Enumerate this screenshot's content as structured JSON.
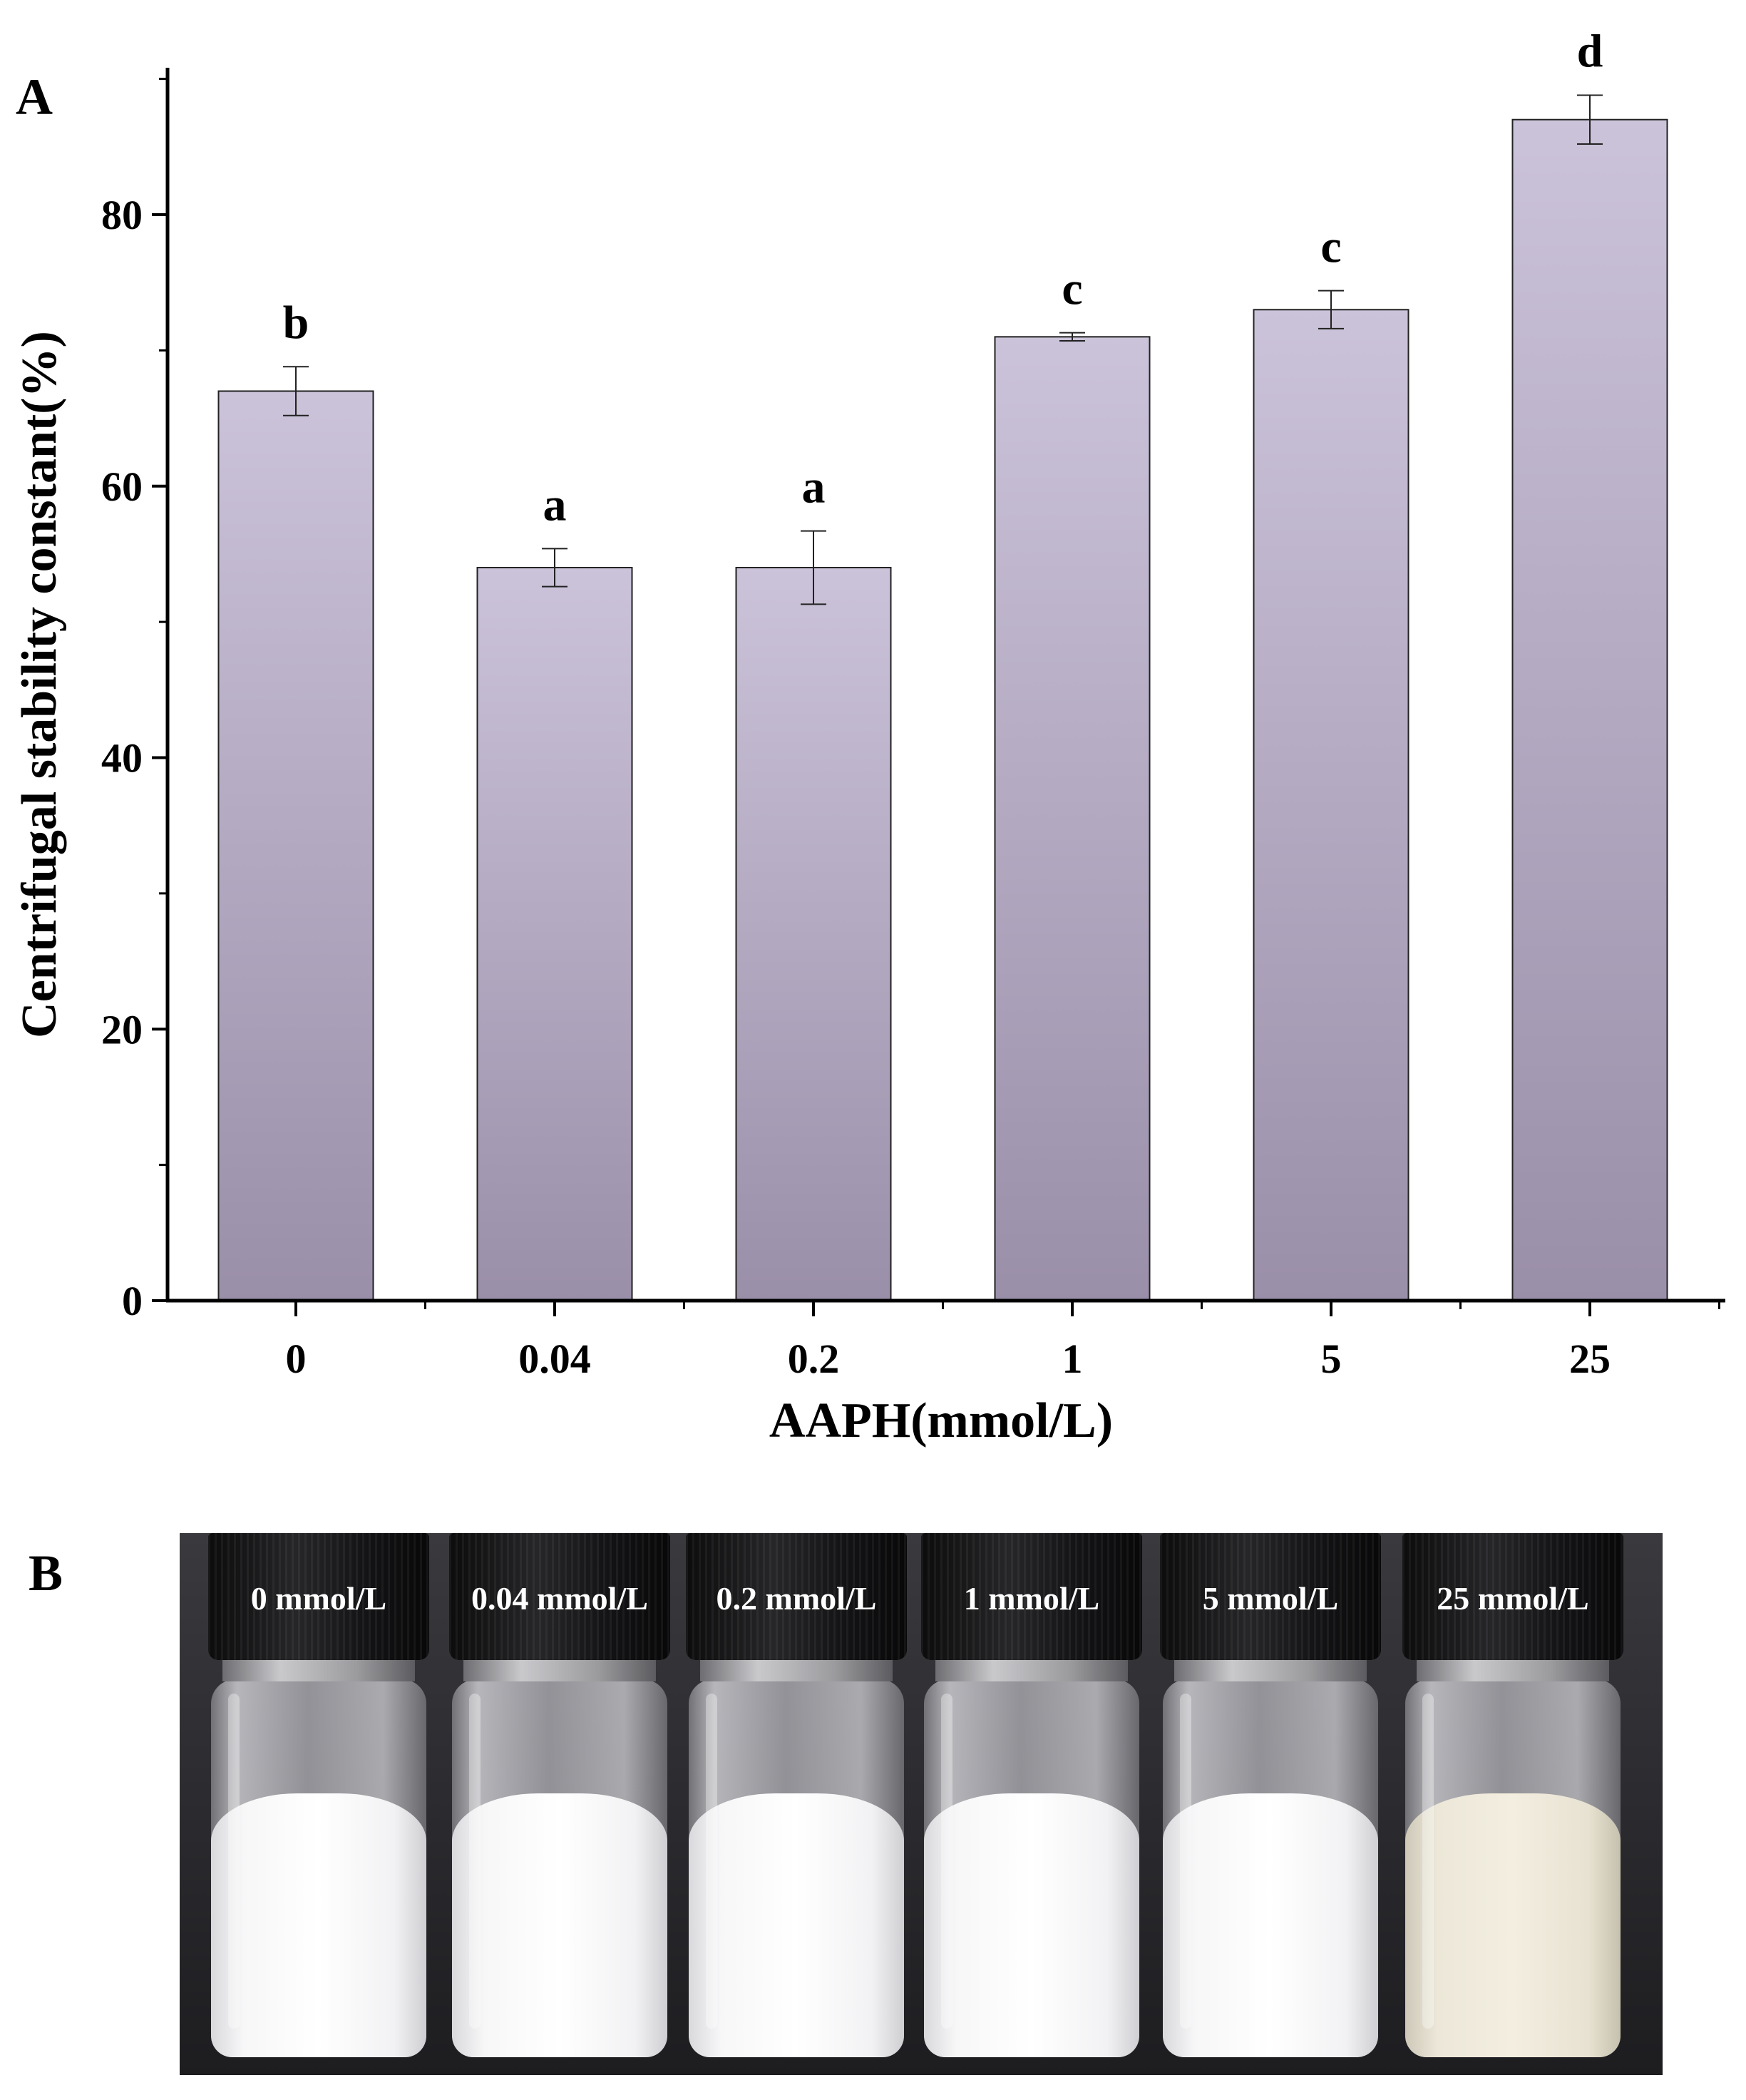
{
  "panels": {
    "a_label": "A",
    "b_label": "B"
  },
  "chart_data": {
    "type": "bar",
    "title": "",
    "xlabel": "AAPH(mmol/L)",
    "ylabel": "Centrifugal stability constant(%)",
    "categories": [
      "0",
      "0.04",
      "0.2",
      "1",
      "5",
      "25"
    ],
    "values": [
      67.0,
      54.0,
      54.0,
      71.0,
      73.0,
      87.0
    ],
    "errors": [
      1.8,
      1.4,
      2.7,
      0.3,
      1.4,
      1.8
    ],
    "significance_letters": [
      "b",
      "a",
      "a",
      "c",
      "c",
      "d"
    ],
    "ylim": [
      0,
      90
    ],
    "yticks": [
      0,
      20,
      40,
      60,
      80
    ],
    "grid": false,
    "bar_color_top": "#cbc3d9",
    "bar_color_bottom": "#9a8fa9"
  },
  "photo": {
    "vials": [
      {
        "label": "0 mmol/L",
        "liquid": "milk"
      },
      {
        "label": "0.04 mmol/L",
        "liquid": "milk"
      },
      {
        "label": "0.2 mmol/L",
        "liquid": "milk"
      },
      {
        "label": "1 mmol/L",
        "liquid": "milk"
      },
      {
        "label": "5 mmol/L",
        "liquid": "milk"
      },
      {
        "label": "25 mmol/L",
        "liquid": "cream"
      }
    ]
  }
}
